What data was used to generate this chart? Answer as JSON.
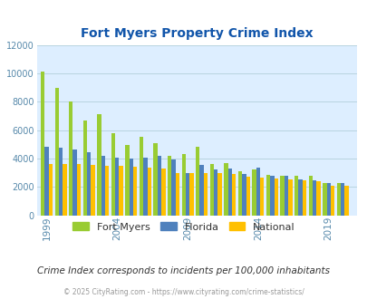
{
  "title": "Fort Myers Property Crime Index",
  "years": [
    1999,
    2000,
    2001,
    2002,
    2003,
    2004,
    2005,
    2006,
    2007,
    2008,
    2009,
    2010,
    2011,
    2012,
    2013,
    2014,
    2015,
    2016,
    2017,
    2018,
    2019,
    2020
  ],
  "fort_myers": [
    10100,
    8950,
    8000,
    6700,
    7150,
    5750,
    4950,
    5500,
    5100,
    4200,
    4300,
    4800,
    3600,
    3650,
    3100,
    3200,
    2850,
    2750,
    2750,
    2800,
    2250,
    2250
  ],
  "florida": [
    4850,
    4750,
    4600,
    4450,
    4200,
    4050,
    4000,
    4050,
    4200,
    3900,
    3000,
    3550,
    3250,
    3300,
    2900,
    3350,
    2800,
    2750,
    2550,
    2450,
    2300,
    2250
  ],
  "national": [
    3600,
    3600,
    3600,
    3550,
    3500,
    3500,
    3400,
    3350,
    3300,
    3000,
    3000,
    2950,
    2950,
    2900,
    2700,
    2650,
    2600,
    2500,
    2450,
    2400,
    2100,
    2050
  ],
  "fort_myers_color": "#99cc33",
  "florida_color": "#4f81bd",
  "national_color": "#ffc000",
  "bg_color": "#ddeeff",
  "grid_color": "#b8d4e0",
  "tick_color": "#5588aa",
  "title_color": "#1155aa",
  "subtitle": "Crime Index corresponds to incidents per 100,000 inhabitants",
  "footer": "© 2025 CityRating.com - https://www.cityrating.com/crime-statistics/",
  "ylim": [
    0,
    12000
  ],
  "yticks": [
    0,
    2000,
    4000,
    6000,
    8000,
    10000,
    12000
  ],
  "xtick_labels": [
    "1999",
    "2004",
    "2009",
    "2014",
    "2019"
  ],
  "xtick_positions": [
    1999,
    2004,
    2009,
    2014,
    2019
  ],
  "bar_width": 0.28
}
